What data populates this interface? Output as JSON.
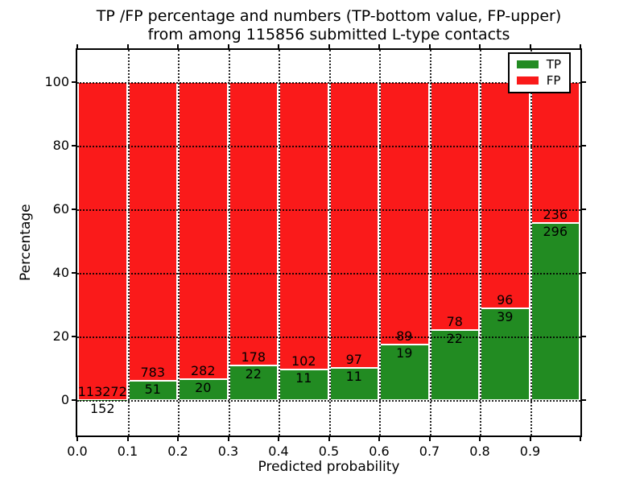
{
  "figure": {
    "title_line1": "TP /FP percentage and numbers (TP-bottom value, FP-upper)",
    "title_line2": "from among 115856 submitted L-type contacts"
  },
  "axes": {
    "xlabel": "Predicted probability",
    "ylabel": "Percentage",
    "xtick_labels": [
      "0.0",
      "0.1",
      "0.2",
      "0.3",
      "0.4",
      "0.5",
      "0.6",
      "0.7",
      "0.8",
      "0.9"
    ],
    "ytick_labels": [
      "0",
      "20",
      "40",
      "60",
      "80",
      "100"
    ]
  },
  "legend": {
    "position": "upper-right",
    "items": [
      {
        "label": "TP",
        "color": "#228b22"
      },
      {
        "label": "FP",
        "color": "#fa1a1a"
      }
    ]
  },
  "chart_data": {
    "type": "bar",
    "stacked": true,
    "normalized_to_percent": true,
    "title": "TP /FP percentage and numbers (TP-bottom value, FP-upper)\nfrom among 115856 submitted L-type contacts",
    "xlabel": "Predicted probability",
    "ylabel": "Percentage",
    "total_contacts": 115856,
    "bins": [
      0.0,
      0.1,
      0.2,
      0.3,
      0.4,
      0.5,
      0.6,
      0.7,
      0.8,
      0.9
    ],
    "bin_width": 0.1,
    "series": [
      {
        "name": "TP",
        "color": "#228b22",
        "counts": [
          152,
          51,
          20,
          22,
          11,
          11,
          19,
          22,
          39,
          296
        ]
      },
      {
        "name": "FP",
        "color": "#fa1a1a",
        "counts": [
          113272,
          783,
          282,
          178,
          102,
          97,
          89,
          78,
          96,
          236
        ]
      }
    ],
    "tp_percent": [
      0.13,
      6.12,
      6.62,
      11.0,
      9.73,
      10.19,
      17.59,
      22.0,
      28.89,
      55.64
    ],
    "xlim": [
      0.0,
      1.0
    ],
    "ylim": [
      -11,
      110
    ],
    "xticks": [
      0.0,
      0.1,
      0.2,
      0.3,
      0.4,
      0.5,
      0.6,
      0.7,
      0.8,
      0.9
    ],
    "yticks": [
      0,
      20,
      40,
      60,
      80,
      100
    ],
    "grid": {
      "style": "dotted",
      "color": "#000000"
    },
    "legend_position": "upper-right",
    "bar_label_order": "FP count above TP count at each green/red boundary"
  },
  "colors": {
    "tp": "#228b22",
    "fp": "#fa1a1a",
    "background": "#ffffff",
    "text": "#000000"
  }
}
